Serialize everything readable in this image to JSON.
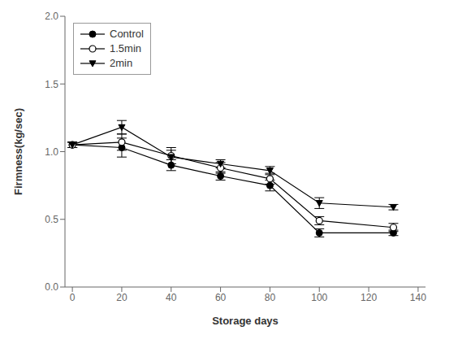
{
  "chart_data": {
    "type": "line",
    "xlabel": "Storage days",
    "ylabel": "Firmness(kg/sec)",
    "x": [
      0,
      20,
      40,
      60,
      80,
      100,
      130
    ],
    "xlim": [
      -3,
      143
    ],
    "ylim": [
      0.0,
      2.0
    ],
    "xticks": [
      0,
      20,
      40,
      60,
      80,
      100,
      120,
      140
    ],
    "yticks": [
      {
        "value": 0.0,
        "label": "0.0"
      },
      {
        "value": 0.5,
        "label": "0.5"
      },
      {
        "value": 1.0,
        "label": "1.0"
      },
      {
        "value": 1.5,
        "label": "1.5"
      },
      {
        "value": 2.0,
        "label": "2.0"
      }
    ],
    "legend": "upper left",
    "grid": false,
    "series": [
      {
        "name": "Control",
        "color": "#000000",
        "marker": "circle",
        "values": [
          1.05,
          1.03,
          0.9,
          0.82,
          0.75,
          0.4,
          0.4
        ],
        "errors": [
          0.02,
          0.07,
          0.04,
          0.03,
          0.04,
          0.03,
          0.02
        ]
      },
      {
        "name": "1.5min",
        "color": "#000000",
        "marker": "open_circle",
        "values": [
          1.05,
          1.07,
          0.97,
          0.88,
          0.8,
          0.49,
          0.44
        ],
        "errors": [
          0.02,
          0.06,
          0.06,
          0.04,
          0.04,
          0.03,
          0.03
        ]
      },
      {
        "name": "2min",
        "color": "#000000",
        "marker": "triangle_down",
        "values": [
          1.05,
          1.18,
          0.96,
          0.91,
          0.86,
          0.62,
          0.59
        ],
        "errors": [
          0.02,
          0.05,
          0.05,
          0.03,
          0.03,
          0.04,
          0.02
        ]
      }
    ]
  }
}
